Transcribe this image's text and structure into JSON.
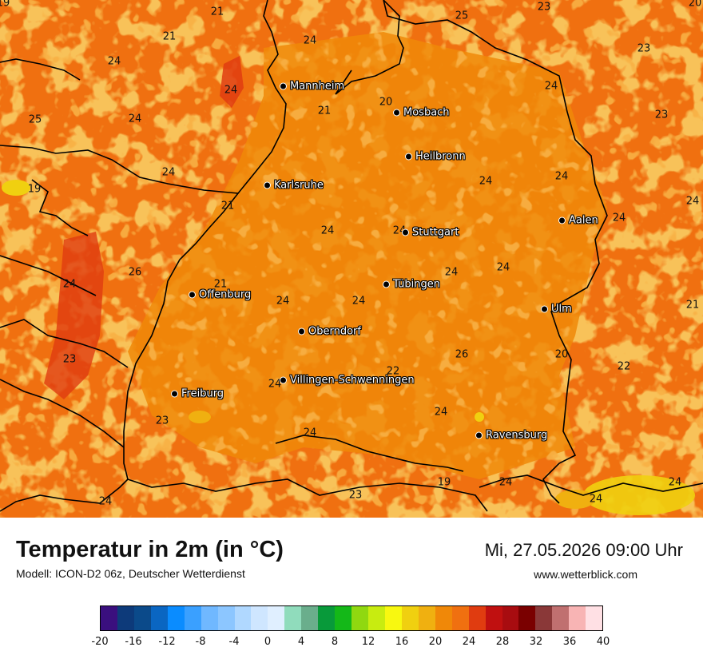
{
  "title": "Temperatur in 2m (in °C)",
  "model": "Modell: ICON-D2 06z, Deutscher Wetterdienst",
  "datetime": "Mi, 27.05.2026 09:00 Uhr",
  "website": "www.wetterblick.com",
  "cities": [
    {
      "name": "Mannheim"
    },
    {
      "name": "Mosbach"
    },
    {
      "name": "Heilbronn"
    },
    {
      "name": "Karlsruhe"
    },
    {
      "name": "Aalen"
    },
    {
      "name": "Stuttgart"
    },
    {
      "name": "Tübingen"
    },
    {
      "name": "Offenburg"
    },
    {
      "name": "Ulm"
    },
    {
      "name": "Oberndorf"
    },
    {
      "name": "Villingen-Schwenningen"
    },
    {
      "name": "Freiburg"
    },
    {
      "name": "Ravensburg"
    }
  ],
  "values": [
    "19",
    "21",
    "25",
    "23",
    "20",
    "21",
    "24",
    "24",
    "23",
    "24",
    "24",
    "25",
    "24",
    "21",
    "20",
    "23",
    "24",
    "24",
    "24",
    "19",
    "24",
    "24",
    "21",
    "24",
    "24",
    "24",
    "24",
    "24",
    "26",
    "21",
    "24",
    "24",
    "21",
    "24",
    "23",
    "26",
    "20",
    "22",
    "22",
    "23",
    "24",
    "24",
    "24",
    "23",
    "24",
    "19",
    "24",
    "24",
    "20",
    "23",
    "23"
  ],
  "legend": {
    "colors": [
      "#3a0f7e",
      "#0d3a7a",
      "#0b4a8a",
      "#0a66c2",
      "#0a8cff",
      "#3aa0ff",
      "#70b8ff",
      "#8cc6ff",
      "#b0d8ff",
      "#cfe6ff",
      "#e0efff",
      "#90dcbc",
      "#6aae8c",
      "#089a3a",
      "#14b818",
      "#90d810",
      "#c8ec10",
      "#f8f810",
      "#f0d010",
      "#f0b010",
      "#f08808",
      "#f07010",
      "#e03c10",
      "#c01010",
      "#a80c10",
      "#7a0000",
      "#8a3838",
      "#c07070",
      "#f8b4b4",
      "#ffe0e4"
    ],
    "ticks": [
      "-20",
      "-16",
      "-12",
      "-8",
      "-4",
      "0",
      "4",
      "8",
      "12",
      "16",
      "20",
      "24",
      "28",
      "32",
      "36",
      "40"
    ]
  }
}
